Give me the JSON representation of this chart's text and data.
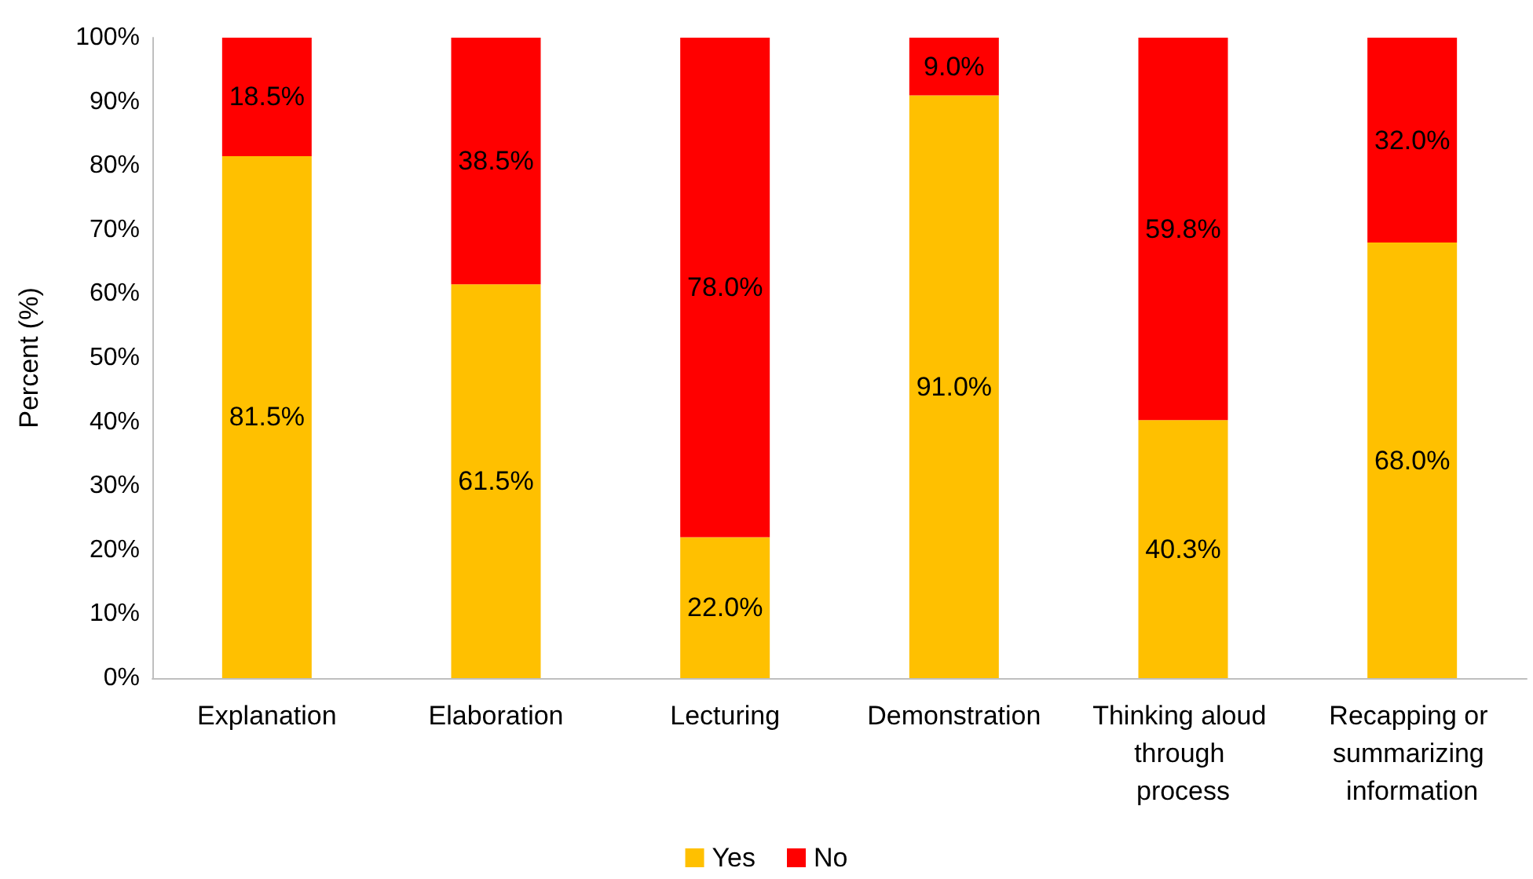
{
  "chart_data": {
    "type": "bar",
    "stacked": true,
    "ylabel": "Percent (%)",
    "categories": [
      "Explanation",
      "Elaboration",
      "Lecturing",
      "Demonstration",
      "Thinking aloud through process",
      "Recapping or summarizing information"
    ],
    "series": [
      {
        "name": "Yes",
        "color": "#ffc000",
        "values": [
          81.5,
          61.5,
          22.0,
          91.0,
          40.3,
          68.0
        ],
        "value_labels": [
          "81.5%",
          "61.5%",
          "22.0%",
          "91.0%",
          "40.3%",
          "68.0%"
        ]
      },
      {
        "name": "No",
        "color": "#ff0000",
        "values": [
          18.5,
          38.5,
          78.0,
          9.0,
          59.8,
          32.0
        ],
        "value_labels": [
          "18.5%",
          "38.5%",
          "78.0%",
          "9.0%",
          "59.8%",
          "32.0%"
        ]
      }
    ],
    "ylim": [
      0,
      100
    ],
    "yticks": [
      {
        "value": 0,
        "label": "0%"
      },
      {
        "value": 10,
        "label": "10%"
      },
      {
        "value": 20,
        "label": "20%"
      },
      {
        "value": 30,
        "label": "30%"
      },
      {
        "value": 40,
        "label": "40%"
      },
      {
        "value": 50,
        "label": "50%"
      },
      {
        "value": 60,
        "label": "60%"
      },
      {
        "value": 70,
        "label": "70%"
      },
      {
        "value": 80,
        "label": "80%"
      },
      {
        "value": 90,
        "label": "90%"
      },
      {
        "value": 100,
        "label": "100%"
      }
    ],
    "grid": false,
    "legend": "bottom"
  }
}
